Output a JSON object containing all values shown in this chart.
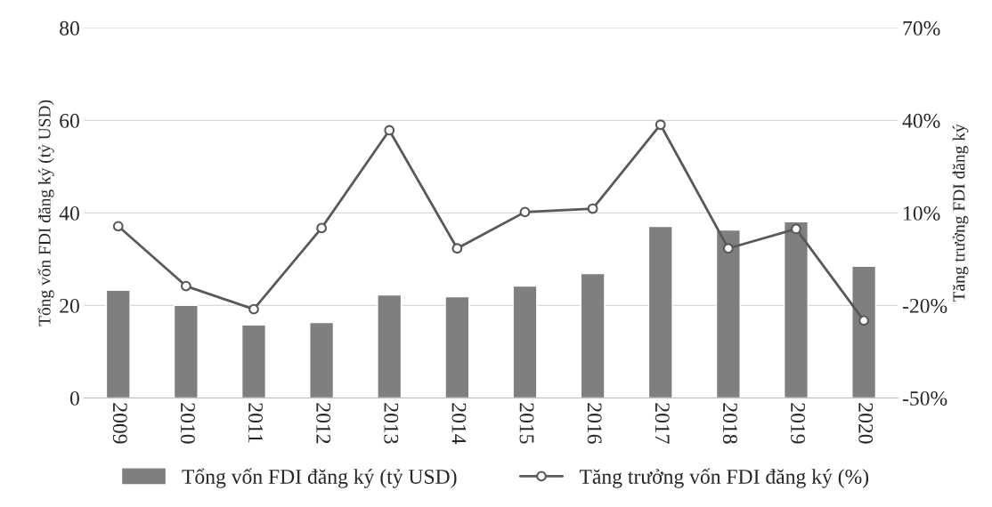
{
  "chart_data": {
    "type": "bar",
    "categories": [
      "2009",
      "2010",
      "2011",
      "2012",
      "2013",
      "2014",
      "2015",
      "2016",
      "2017",
      "2018",
      "2019",
      "2020"
    ],
    "ylabel": "Tổng vốn FDI đăng ký (tỷ USD)",
    "y2label": "Tăng trưởng FDI đăng ký",
    "ylim": [
      0,
      80
    ],
    "yticks": [
      0,
      20,
      40,
      60,
      80
    ],
    "y2lim": [
      -50,
      70
    ],
    "y2ticks": [
      {
        "value": -50,
        "label": "-50%"
      },
      {
        "value": -20,
        "label": "-20%"
      },
      {
        "value": 10,
        "label": "10%"
      },
      {
        "value": 40,
        "label": "40%"
      },
      {
        "value": 70,
        "label": "70%"
      }
    ],
    "grid": "y",
    "legend": "bottom",
    "series": [
      {
        "name": "Tổng vốn FDI đăng ký (tỷ USD)",
        "color": "#7f7f7f",
        "values": [
          23.3,
          20,
          15.8,
          16.3,
          22.3,
          21.9,
          24.2,
          26.9,
          37.1,
          36.3,
          38.1,
          28.5
        ]
      },
      {
        "name": "Tăng trưởng vốn FDI đăng ký (%)",
        "type": "line",
        "axis": "y2",
        "color": "#595959",
        "marker": "circle",
        "line_style": "solid",
        "values": [
          5.7,
          -13.7,
          -21.2,
          5.1,
          36.8,
          -1.5,
          10.3,
          11.4,
          38.6,
          -1.5,
          4.8,
          -24.9
        ]
      }
    ]
  }
}
